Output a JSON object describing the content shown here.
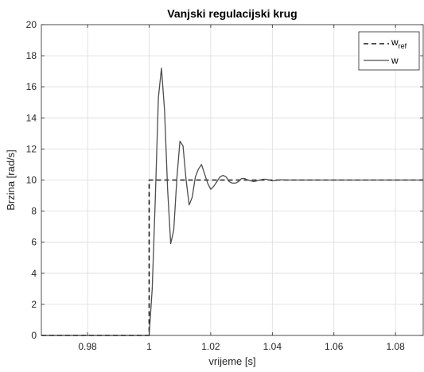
{
  "chart_data": {
    "type": "line",
    "title": "Vanjski regulacijski krug",
    "xlabel": "vrijeme [s]",
    "ylabel": "Brzina [rad/s]",
    "xlim": [
      0.965,
      1.089
    ],
    "ylim": [
      0,
      20
    ],
    "xticks": [
      0.98,
      1,
      1.02,
      1.04,
      1.06,
      1.08
    ],
    "xtick_labels": [
      "0.98",
      "1",
      "1.02",
      "1.04",
      "1.06",
      "1.08"
    ],
    "yticks": [
      0,
      2,
      4,
      6,
      8,
      10,
      12,
      14,
      16,
      18,
      20
    ],
    "ytick_labels": [
      "0",
      "2",
      "4",
      "6",
      "8",
      "10",
      "12",
      "14",
      "16",
      "18",
      "20"
    ],
    "grid": true,
    "legend": {
      "placement": "top-right"
    },
    "series": [
      {
        "name": "w",
        "name_main": "w",
        "name_sub": "ref",
        "style": "dashed",
        "color": "#1a1a1a",
        "x": [
          0.965,
          1.0,
          1.0,
          1.089
        ],
        "y": [
          0,
          0,
          10,
          10
        ]
      },
      {
        "name": "w",
        "style": "solid",
        "color": "#4d4d4d",
        "x": [
          0.965,
          1.0,
          1.001,
          1.002,
          1.003,
          1.004,
          1.005,
          1.006,
          1.007,
          1.008,
          1.009,
          1.01,
          1.011,
          1.012,
          1.013,
          1.014,
          1.015,
          1.016,
          1.017,
          1.018,
          1.019,
          1.02,
          1.021,
          1.022,
          1.023,
          1.024,
          1.025,
          1.026,
          1.027,
          1.028,
          1.029,
          1.03,
          1.031,
          1.032,
          1.033,
          1.034,
          1.035,
          1.036,
          1.037,
          1.038,
          1.039,
          1.04,
          1.041,
          1.042,
          1.043,
          1.044,
          1.045,
          1.046,
          1.047,
          1.048,
          1.05,
          1.055,
          1.06,
          1.07,
          1.08,
          1.089
        ],
        "y": [
          0,
          0,
          3.0,
          8.8,
          15.3,
          17.2,
          14.5,
          9.4,
          5.9,
          6.8,
          10.1,
          12.5,
          12.2,
          10.0,
          8.4,
          8.9,
          10.2,
          10.7,
          11.0,
          10.4,
          9.8,
          9.4,
          9.6,
          9.9,
          10.2,
          10.3,
          10.2,
          9.9,
          9.8,
          9.8,
          9.9,
          10.1,
          10.1,
          10.0,
          9.95,
          9.9,
          9.95,
          10.0,
          10.05,
          10.05,
          10.0,
          9.95,
          9.97,
          10.0,
          10.02,
          10.0,
          10.0,
          10.0,
          10.0,
          10.0,
          10.0,
          10.0,
          10.0,
          10.0,
          10.0,
          10.0
        ]
      }
    ]
  }
}
